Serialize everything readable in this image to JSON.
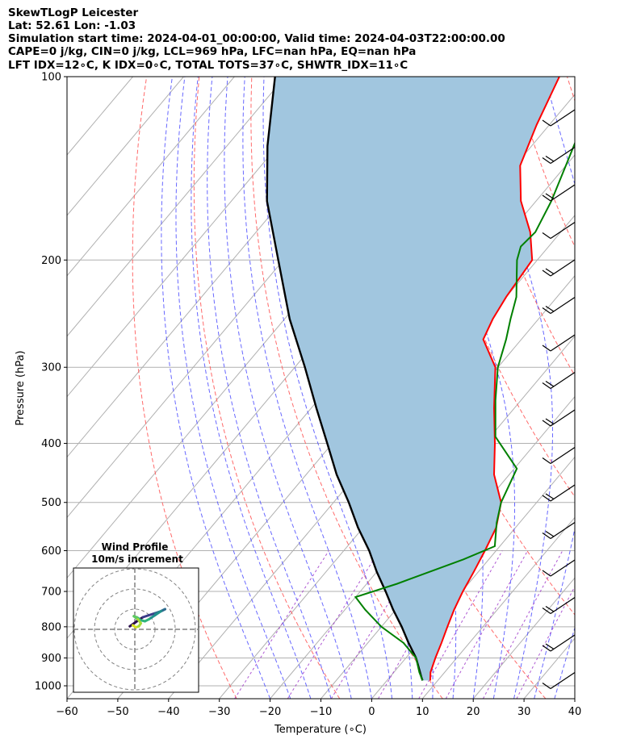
{
  "header": {
    "line1": "SkewTLogP Leicester",
    "line2": "Lat: 52.61   Lon: -1.03",
    "line3": "Simulation start time: 2024-04-01_00:00:00, Valid time: 2024-04-03T22:00:00.00",
    "line4": "CAPE=0 j/kg, CIN=0 j/kg, LCL=969 hPa, LFC=nan hPa, EQ=nan hPa",
    "line5": "LFT IDX=12∘C, K IDX=0∘C, TOTAL TOTS=37∘C, SHWTR_IDX=11∘C"
  },
  "colors": {
    "temperature": "#ff0000",
    "dewpoint": "#008000",
    "parcel": "#000000",
    "cape_fill": "#a1c6df",
    "isotherm": "#b0b0b0",
    "dry_adiabat": "#ff5a5a",
    "moist_adiabat": "#4d4dff",
    "mixing_ratio": "#9b30c8"
  },
  "chart_data": [
    {
      "type": "line",
      "title": "",
      "xlabel": "Temperature (∘C)",
      "ylabel": "Pressure (hPa)",
      "xlim": [
        -60,
        40
      ],
      "ylim": [
        1050,
        100
      ],
      "y_scale": "log",
      "skew": true,
      "grid": true,
      "x_ticks": [
        "−60",
        "−50",
        "−40",
        "−30",
        "−20",
        "−10",
        "0",
        "10",
        "20",
        "30",
        "40"
      ],
      "y_ticks": [
        "1000",
        "900",
        "800",
        "700",
        "600",
        "500",
        "400",
        "300",
        "200",
        "100"
      ],
      "series": [
        {
          "name": "",
          "role": "temperature",
          "points": [
            [
              8.5,
              980
            ],
            [
              7.2,
              950
            ],
            [
              5.8,
              900
            ],
            [
              4.5,
              850
            ],
            [
              3.0,
              800
            ],
            [
              1.5,
              750
            ],
            [
              0.2,
              700
            ],
            [
              -0.9,
              650
            ],
            [
              -2.2,
              600
            ],
            [
              -3.8,
              550
            ],
            [
              -7.0,
              500
            ],
            [
              -13.0,
              450
            ],
            [
              -18.0,
              400
            ],
            [
              -24.0,
              350
            ],
            [
              -30.5,
              300
            ],
            [
              -37.5,
              270
            ],
            [
              -39.0,
              250
            ],
            [
              -40.0,
              230
            ],
            [
              -41.0,
              200
            ],
            [
              -46.0,
              180
            ],
            [
              -53.0,
              160
            ],
            [
              -59.0,
              140
            ],
            [
              -62.5,
              120
            ],
            [
              -66.0,
              100
            ]
          ]
        },
        {
          "name": "",
          "role": "dewpoint",
          "points": [
            [
              7.0,
              980
            ],
            [
              5.0,
              950
            ],
            [
              2.0,
              900
            ],
            [
              -3.0,
              850
            ],
            [
              -10.0,
              800
            ],
            [
              -16.0,
              750
            ],
            [
              -20.0,
              715
            ],
            [
              -14.0,
              680
            ],
            [
              -5.0,
              620
            ],
            [
              -1.0,
              590
            ],
            [
              -4.5,
              540
            ],
            [
              -7.0,
              500
            ],
            [
              -9.5,
              440
            ],
            [
              -19.0,
              390
            ],
            [
              -25.0,
              340
            ],
            [
              -30.0,
              300
            ],
            [
              -33.0,
              270
            ],
            [
              -35.5,
              250
            ],
            [
              -38.0,
              230
            ],
            [
              -44.0,
              200
            ],
            [
              -45.5,
              190
            ],
            [
              -45.0,
              180
            ],
            [
              -47.0,
              160
            ],
            [
              -50.0,
              140
            ],
            [
              -53.5,
              120
            ],
            [
              -57.0,
              100
            ]
          ]
        },
        {
          "name": "",
          "role": "parcel",
          "points": [
            [
              7.0,
              980
            ],
            [
              6.3,
              969
            ],
            [
              2.0,
              900
            ],
            [
              -2.0,
              850
            ],
            [
              -6.0,
              800
            ],
            [
              -10.5,
              750
            ],
            [
              -15.0,
              700
            ],
            [
              -20.0,
              650
            ],
            [
              -25.0,
              600
            ],
            [
              -31.0,
              550
            ],
            [
              -37.0,
              500
            ],
            [
              -44.0,
              450
            ],
            [
              -51.0,
              400
            ],
            [
              -59.0,
              350
            ],
            [
              -68.0,
              300
            ],
            [
              -79.0,
              250
            ],
            [
              -91.0,
              200
            ],
            [
              -103.0,
              160
            ],
            [
              -112.0,
              130
            ],
            [
              -122.0,
              100
            ]
          ]
        }
      ]
    },
    {
      "type": "scatter",
      "title": "Wind Profile",
      "subtitle": "10m/s increment",
      "ring_spacing_ms": 10,
      "series": [
        {
          "name": "",
          "role": "hodograph",
          "points": [
            [
              -5,
              3
            ],
            [
              -2,
              5
            ],
            [
              2,
              8
            ],
            [
              8,
              12
            ],
            [
              14,
              14
            ],
            [
              20,
              16
            ],
            [
              26,
              18
            ],
            [
              30,
              20
            ],
            [
              26,
              18
            ],
            [
              20,
              14
            ],
            [
              14,
              10
            ],
            [
              10,
              8
            ],
            [
              6,
              9
            ],
            [
              2,
              12
            ],
            [
              -1,
              13
            ],
            [
              3,
              10
            ],
            [
              6,
              6
            ],
            [
              4,
              3
            ],
            [
              1,
              2
            ],
            [
              -2,
              4
            ]
          ]
        }
      ]
    }
  ]
}
